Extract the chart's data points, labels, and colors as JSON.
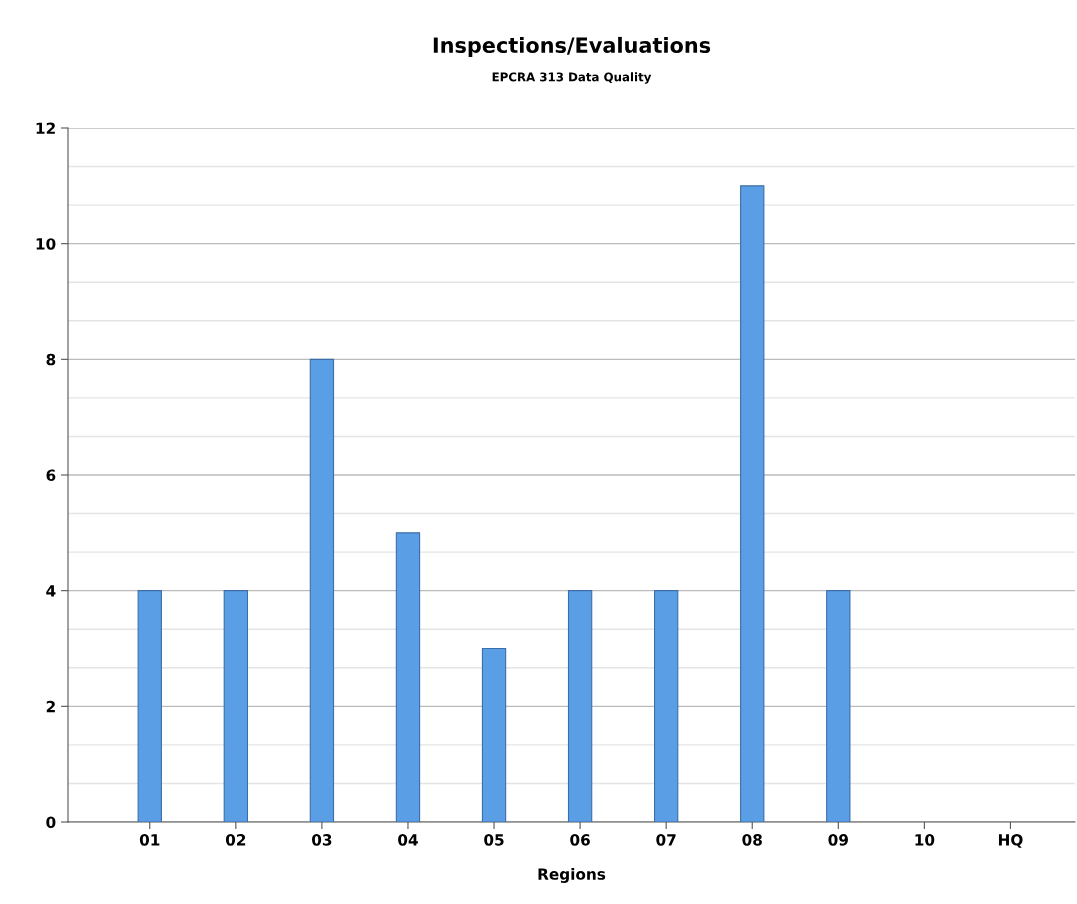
{
  "chart_data": {
    "type": "bar",
    "title": "Inspections/Evaluations",
    "subtitle": "EPCRA 313 Data Quality",
    "xlabel": "Regions",
    "categories": [
      "01",
      "02",
      "03",
      "04",
      "05",
      "06",
      "07",
      "08",
      "09",
      "10",
      "HQ"
    ],
    "values": [
      4,
      4,
      8,
      5,
      3,
      4,
      4,
      11,
      4,
      0,
      0
    ],
    "color": "#5a9fe6",
    "ylim": [
      0,
      12
    ],
    "yticks": [
      0,
      2,
      4,
      6,
      8,
      10,
      12
    ],
    "grid": "y"
  }
}
